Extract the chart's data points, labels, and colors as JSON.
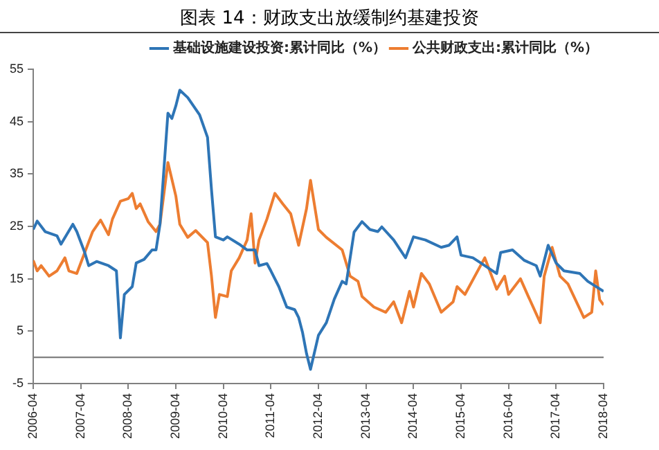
{
  "chart_data": {
    "type": "line",
    "title": "图表 14：财政支出放缓制约基建投资",
    "legend": "top right",
    "grid": false,
    "marker": "none",
    "line_style": "solid",
    "xlim": [
      "2006-04",
      "2018-04"
    ],
    "xticks": [
      "2006-04",
      "2007-04",
      "2008-04",
      "2009-04",
      "2010-04",
      "2011-04",
      "2012-04",
      "2013-04",
      "2014-04",
      "2015-04",
      "2016-04",
      "2017-04",
      "2018-04"
    ],
    "ylim": [
      -5,
      55
    ],
    "yticks": [
      -5,
      5,
      15,
      25,
      35,
      45,
      55
    ],
    "ref_lines": [
      {
        "axis": "y",
        "value": 0,
        "color": "#808080"
      }
    ],
    "series": [
      {
        "name": "基础设施建设投资:累计同比（%）",
        "color": "#2e75b6",
        "x": [
          "2006-04",
          "2006-05",
          "2006-07",
          "2006-10",
          "2006-11",
          "2007-02",
          "2007-03",
          "2007-05",
          "2007-06",
          "2007-08",
          "2007-11",
          "2008-01",
          "2008-02",
          "2008-03",
          "2008-05",
          "2008-06",
          "2008-08",
          "2008-10",
          "2008-11",
          "2008-12",
          "2009-02",
          "2009-03",
          "2009-04",
          "2009-05",
          "2009-07",
          "2009-10",
          "2009-12",
          "2010-01",
          "2010-02",
          "2010-04",
          "2010-05",
          "2010-08",
          "2010-10",
          "2010-12",
          "2011-01",
          "2011-03",
          "2011-04",
          "2011-06",
          "2011-08",
          "2011-10",
          "2011-11",
          "2011-12",
          "2012-01",
          "2012-02",
          "2012-04",
          "2012-06",
          "2012-08",
          "2012-10",
          "2012-11",
          "2013-01",
          "2013-03",
          "2013-05",
          "2013-07",
          "2013-08",
          "2013-11",
          "2014-02",
          "2014-04",
          "2014-07",
          "2014-11",
          "2015-01",
          "2015-03",
          "2015-04",
          "2015-07",
          "2015-09",
          "2016-01",
          "2016-02",
          "2016-05",
          "2016-08",
          "2016-11",
          "2016-12",
          "2017-02",
          "2017-04",
          "2017-06",
          "2017-10",
          "2017-12",
          "2018-04"
        ],
        "values": [
          24.4,
          26,
          24,
          23.2,
          21.6,
          25.4,
          24,
          20,
          17.5,
          18.3,
          17.5,
          16.5,
          3.7,
          12,
          13.5,
          18,
          18.7,
          20.5,
          20.5,
          25.4,
          46.6,
          45.6,
          48,
          51,
          49.6,
          46.3,
          42,
          32,
          23,
          22.4,
          23,
          21.6,
          20.5,
          20.5,
          17.5,
          17.9,
          16.5,
          13.5,
          9.6,
          9.1,
          7.6,
          4.7,
          0.7,
          -2.3,
          4.2,
          6.6,
          11.1,
          14.5,
          14,
          23.9,
          25.9,
          24.4,
          24,
          24.9,
          22.4,
          19,
          23,
          22.4,
          21,
          21.4,
          23,
          19.5,
          19,
          18,
          16,
          20,
          20.5,
          18.5,
          17.5,
          15.5,
          21.4,
          18,
          16.5,
          16,
          14.5,
          12.6
        ]
      },
      {
        "name": "公共财政支出:累计同比（%）",
        "color": "#ed7d31",
        "x": [
          "2006-04",
          "2006-05",
          "2006-06",
          "2006-08",
          "2006-10",
          "2006-12",
          "2007-01",
          "2007-03",
          "2007-05",
          "2007-07",
          "2007-09",
          "2007-11",
          "2007-12",
          "2008-02",
          "2008-04",
          "2008-05",
          "2008-06",
          "2008-07",
          "2008-09",
          "2008-11",
          "2008-12",
          "2009-02",
          "2009-04",
          "2009-05",
          "2009-07",
          "2009-09",
          "2009-12",
          "2010-01",
          "2010-02",
          "2010-03",
          "2010-05",
          "2010-06",
          "2010-08",
          "2010-10",
          "2010-11",
          "2010-12",
          "2011-01",
          "2011-03",
          "2011-05",
          "2011-07",
          "2011-09",
          "2011-11",
          "2012-01",
          "2012-02",
          "2012-04",
          "2012-06",
          "2012-10",
          "2012-12",
          "2013-02",
          "2013-03",
          "2013-06",
          "2013-09",
          "2013-11",
          "2014-01",
          "2014-03",
          "2014-04",
          "2014-06",
          "2014-08",
          "2014-11",
          "2015-02",
          "2015-03",
          "2015-05",
          "2015-10",
          "2016-01",
          "2016-03",
          "2016-04",
          "2016-07",
          "2016-09",
          "2016-12",
          "2017-01",
          "2017-03",
          "2017-05",
          "2017-07",
          "2017-11",
          "2018-01",
          "2018-02",
          "2018-03",
          "2018-04"
        ],
        "values": [
          18.5,
          16.5,
          17.5,
          15.5,
          16.5,
          19,
          16.5,
          16,
          20,
          24,
          26.2,
          23.4,
          26.4,
          29.8,
          30.3,
          31.3,
          28.4,
          29.3,
          25.9,
          24,
          25.4,
          37.2,
          30.8,
          25.4,
          22.9,
          24.2,
          21.9,
          15.5,
          7.6,
          12,
          11.6,
          16.5,
          19,
          22.4,
          27.4,
          18,
          22.4,
          26.4,
          31.3,
          29.3,
          27.4,
          21.4,
          28.4,
          33.8,
          24.4,
          22.9,
          20.5,
          15.5,
          14.5,
          11.6,
          9.6,
          8.6,
          10.6,
          6.6,
          12.6,
          9.6,
          16,
          14,
          8.6,
          10.6,
          13.5,
          12,
          19,
          13,
          15.5,
          12,
          15,
          11.6,
          6.6,
          15.5,
          21,
          15.5,
          14,
          7.6,
          8.6,
          16.5,
          11,
          10
        ]
      }
    ]
  }
}
